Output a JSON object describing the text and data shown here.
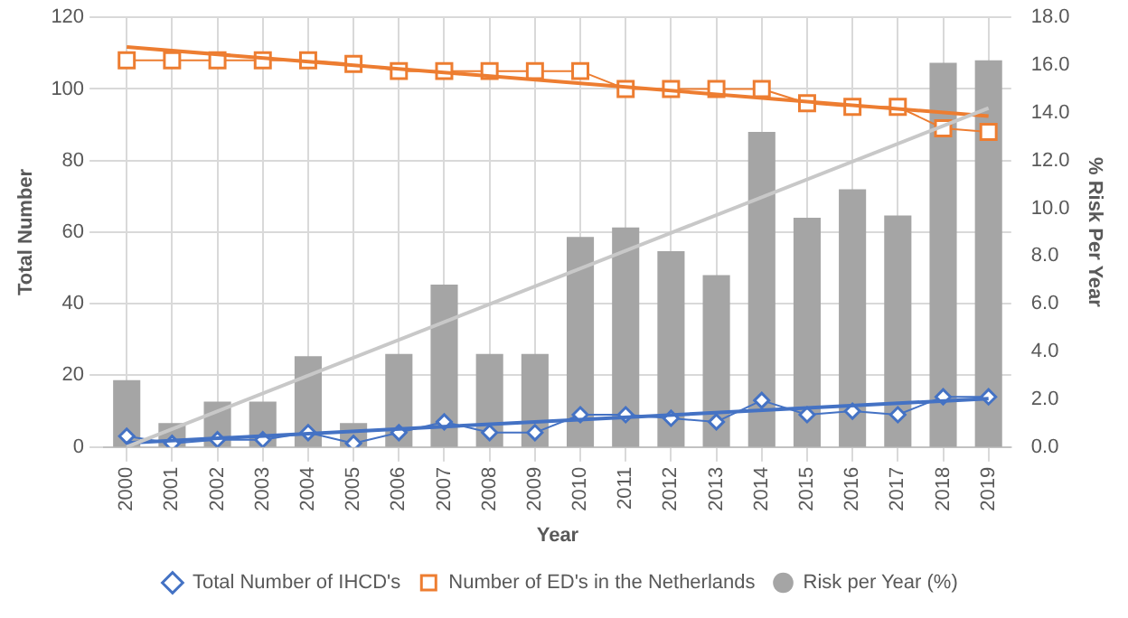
{
  "chart_data": {
    "type": "bar",
    "xlabel": "Year",
    "ylabel": "Total Number",
    "y2label": "% Risk Per Year",
    "categories": [
      "2000",
      "2001",
      "2002",
      "2003",
      "2004",
      "2005",
      "2006",
      "2007",
      "2008",
      "2009",
      "2010",
      "2011",
      "2012",
      "2013",
      "2014",
      "2015",
      "2016",
      "2017",
      "2018",
      "2019"
    ],
    "ylim": [
      0,
      120
    ],
    "yticks": [
      0,
      20,
      40,
      60,
      80,
      100,
      120
    ],
    "y2lim": [
      0,
      18
    ],
    "y2ticks": [
      {
        "value": 0,
        "label": "0.0"
      },
      {
        "value": 2,
        "label": "2.0"
      },
      {
        "value": 4,
        "label": "4.0"
      },
      {
        "value": 6,
        "label": "6.0"
      },
      {
        "value": 8,
        "label": "8.0"
      },
      {
        "value": 10,
        "label": "10.0"
      },
      {
        "value": 12,
        "label": "12.0"
      },
      {
        "value": 14,
        "label": "14.0"
      },
      {
        "value": 16,
        "label": "16.0"
      },
      {
        "value": 18,
        "label": "18.0"
      }
    ],
    "grid": true,
    "legend": "bottom",
    "series": [
      {
        "name": "Risk per Year (%)",
        "axis": "y2",
        "color": "#a5a5a5",
        "values": [
          2.8,
          1.0,
          1.9,
          1.9,
          3.8,
          1.0,
          3.9,
          6.8,
          3.9,
          3.9,
          8.8,
          9.2,
          8.2,
          7.2,
          13.2,
          9.6,
          10.8,
          9.7,
          16.1,
          16.2
        ]
      },
      {
        "name": "Total Number of IHCD's",
        "type": "line",
        "color": "#4472c4",
        "marker": "diamond",
        "values": [
          3,
          1,
          2,
          2,
          4,
          1,
          4,
          7,
          4,
          4,
          9,
          9,
          8,
          7,
          13,
          9,
          10,
          9,
          14,
          14
        ]
      },
      {
        "name": "Number of ED's in the Netherlands",
        "type": "line",
        "color": "#ed7d31",
        "marker": "square",
        "values": [
          108,
          108,
          108,
          108,
          108,
          107,
          105,
          105,
          105,
          105,
          105,
          100,
          100,
          100,
          100,
          96,
          95,
          95,
          89,
          88
        ]
      },
      {
        "type": "line",
        "axis": "y2",
        "color": "#c8c8c8",
        "marker": "none",
        "values": [
          0,
          null,
          null,
          null,
          null,
          null,
          null,
          null,
          null,
          null,
          null,
          null,
          null,
          null,
          null,
          null,
          null,
          null,
          null,
          14.2
        ]
      },
      {
        "type": "line",
        "color": "#4472c4",
        "marker": "none",
        "values": [
          1.1,
          null,
          null,
          null,
          null,
          null,
          null,
          null,
          null,
          null,
          null,
          null,
          null,
          null,
          null,
          null,
          null,
          null,
          null,
          13.5
        ]
      },
      {
        "type": "line",
        "color": "#ed7d31",
        "marker": "none",
        "values": [
          111.7,
          null,
          null,
          null,
          null,
          null,
          null,
          null,
          null,
          null,
          null,
          null,
          null,
          null,
          null,
          null,
          null,
          null,
          null,
          92.4
        ]
      }
    ]
  }
}
